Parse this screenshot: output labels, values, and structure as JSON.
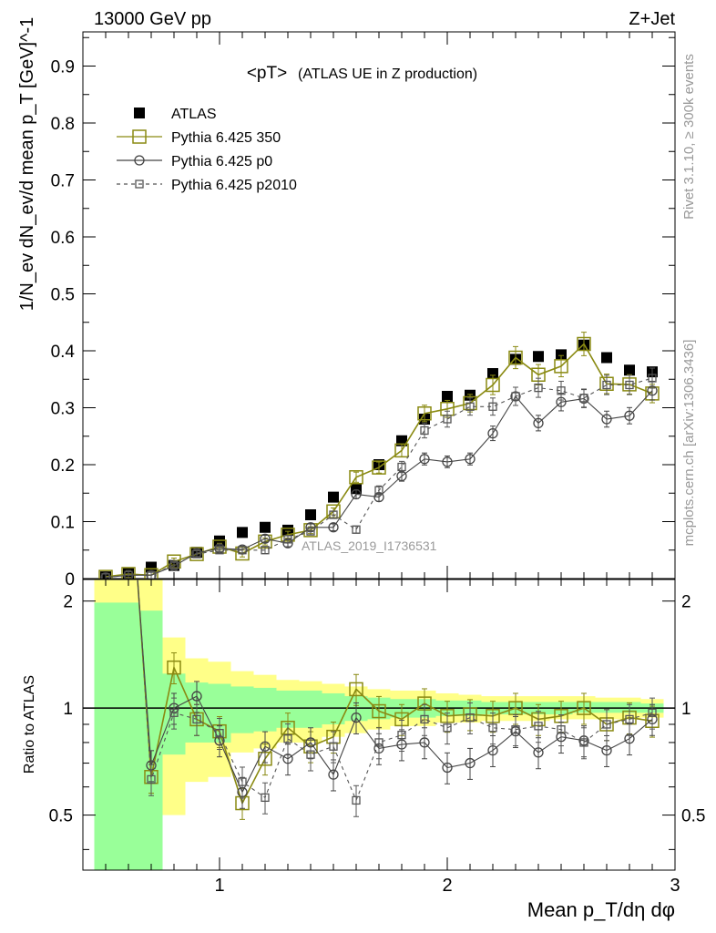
{
  "header": {
    "left": "13000 GeV pp",
    "right": "Z+Jet"
  },
  "upper_panel": {
    "title": "<pT>",
    "title_suffix": "(ATLAS UE in Z production)",
    "ylabel": "1/N_ev dN_ev/d mean p_T [GeV]^-1",
    "watermark": "ATLAS_2019_I1736531",
    "side_label_top": "Rivet 3.1.10, ≥ 300k events",
    "side_label_bottom": "mcplots.cern.ch [arXiv:1306.3436]"
  },
  "lower_panel": {
    "ylabel": "Ratio to ATLAS"
  },
  "xlabel": "Mean p_T/dη dφ",
  "legend": [
    {
      "name": "ATLAS",
      "style": "data"
    },
    {
      "name": "Pythia 6.425 350",
      "style": "olive"
    },
    {
      "name": "Pythia 6.425 p0",
      "style": "dark"
    },
    {
      "name": "Pythia 6.425 p2010",
      "style": "dashed"
    }
  ],
  "colors": {
    "data": "#000000",
    "olive": "#8a8a12",
    "dark": "#444444",
    "dashed": "#555555",
    "band_green": "#99ff99",
    "band_yellow": "#ffff88"
  },
  "chart_data": [
    {
      "type": "line",
      "panel": "upper",
      "xlim": [
        0.4,
        3.0
      ],
      "ylim": [
        0,
        0.96
      ],
      "x_ticks": [
        1,
        2,
        3
      ],
      "y_ticks": [
        0,
        0.1,
        0.2,
        0.3,
        0.4,
        0.5,
        0.6,
        0.7,
        0.8,
        0.9
      ],
      "y_tick_labels": [
        "0",
        "0.1",
        "0.2",
        "0.3",
        "0.4",
        "0.5",
        "0.6",
        "0.7",
        "0.8",
        "0.9"
      ],
      "x": [
        0.5,
        0.6,
        0.7,
        0.8,
        0.9,
        1.0,
        1.1,
        1.2,
        1.3,
        1.4,
        1.5,
        1.6,
        1.7,
        1.8,
        1.9,
        2.0,
        2.1,
        2.2,
        2.3,
        2.4,
        2.5,
        2.6,
        2.7,
        2.8,
        2.9
      ],
      "series": [
        {
          "name": "ATLAS",
          "values": [
            0.003,
            0.009,
            0.02,
            0.023,
            0.046,
            0.066,
            0.081,
            0.09,
            0.085,
            0.112,
            0.143,
            0.158,
            0.2,
            0.242,
            0.28,
            0.32,
            0.322,
            0.36,
            0.385,
            0.39,
            0.393,
            0.41,
            0.388,
            0.366,
            0.363
          ]
        },
        {
          "name": "Pythia 6.425 350",
          "values": [
            0.003,
            0.008,
            0.006,
            0.03,
            0.043,
            0.056,
            0.044,
            0.065,
            0.077,
            0.085,
            0.118,
            0.178,
            0.195,
            0.225,
            0.29,
            0.298,
            0.308,
            0.34,
            0.388,
            0.358,
            0.373,
            0.412,
            0.342,
            0.341,
            0.325
          ]
        },
        {
          "name": "Pythia 6.425 p0",
          "values": [
            0.002,
            0.006,
            0.006,
            0.022,
            0.045,
            0.053,
            0.051,
            0.07,
            0.062,
            0.09,
            0.09,
            0.148,
            0.143,
            0.18,
            0.21,
            0.205,
            0.21,
            0.255,
            0.32,
            0.273,
            0.31,
            0.316,
            0.28,
            0.286,
            0.33
          ]
        },
        {
          "name": "Pythia 6.425 p2010",
          "values": [
            0.002,
            0.006,
            0.006,
            0.024,
            0.043,
            0.05,
            0.05,
            0.05,
            0.069,
            0.083,
            0.112,
            0.086,
            0.155,
            0.196,
            0.26,
            0.28,
            0.302,
            0.302,
            0.32,
            0.335,
            0.33,
            0.317,
            0.34,
            0.34,
            0.352
          ]
        }
      ]
    },
    {
      "type": "line",
      "panel": "lower",
      "xlim": [
        0.4,
        3.0
      ],
      "ylim": [
        0.35,
        2.3
      ],
      "log_y": true,
      "x_ticks": [
        1,
        2,
        3
      ],
      "y_ticks": [
        0.5,
        1,
        2
      ],
      "y_tick_labels": [
        "0.5",
        "1",
        "2"
      ],
      "x": [
        0.7,
        0.8,
        0.9,
        1.0,
        1.1,
        1.2,
        1.3,
        1.4,
        1.5,
        1.6,
        1.7,
        1.8,
        1.9,
        2.0,
        2.1,
        2.2,
        2.3,
        2.4,
        2.5,
        2.6,
        2.7,
        2.8,
        2.9
      ],
      "band_edges": [
        0.45,
        0.65,
        0.75,
        0.85,
        0.95,
        1.05,
        1.15,
        1.25,
        1.35,
        1.45,
        1.55,
        1.65,
        1.75,
        1.85,
        1.95,
        2.05,
        2.15,
        2.25,
        2.35,
        2.45,
        2.55,
        2.65,
        2.75,
        2.85,
        2.95
      ],
      "band_green": [
        [
          0.1,
          1.98
        ],
        [
          0.1,
          1.88
        ],
        [
          0.74,
          1.25
        ],
        [
          0.8,
          1.18
        ],
        [
          0.8,
          1.17
        ],
        [
          0.85,
          1.15
        ],
        [
          0.86,
          1.14
        ],
        [
          0.88,
          1.12
        ],
        [
          0.88,
          1.12
        ],
        [
          0.9,
          1.1
        ],
        [
          0.92,
          1.08
        ],
        [
          0.93,
          1.07
        ],
        [
          0.94,
          1.06
        ],
        [
          0.94,
          1.06
        ],
        [
          0.95,
          1.05
        ],
        [
          0.95,
          1.05
        ],
        [
          0.96,
          1.04
        ],
        [
          0.96,
          1.04
        ],
        [
          0.96,
          1.04
        ],
        [
          0.96,
          1.04
        ],
        [
          0.97,
          1.04
        ],
        [
          0.97,
          1.04
        ],
        [
          0.97,
          1.04
        ],
        [
          0.97,
          1.03
        ]
      ],
      "band_yellow": [
        [
          0.1,
          2.4
        ],
        [
          0.1,
          2.3
        ],
        [
          0.5,
          1.58
        ],
        [
          0.62,
          1.38
        ],
        [
          0.64,
          1.35
        ],
        [
          0.75,
          1.27
        ],
        [
          0.77,
          1.24
        ],
        [
          0.8,
          1.2
        ],
        [
          0.8,
          1.19
        ],
        [
          0.83,
          1.17
        ],
        [
          0.85,
          1.15
        ],
        [
          0.87,
          1.13
        ],
        [
          0.89,
          1.12
        ],
        [
          0.89,
          1.12
        ],
        [
          0.91,
          1.1
        ],
        [
          0.91,
          1.09
        ],
        [
          0.92,
          1.08
        ],
        [
          0.92,
          1.08
        ],
        [
          0.92,
          1.08
        ],
        [
          0.93,
          1.08
        ],
        [
          0.93,
          1.08
        ],
        [
          0.93,
          1.07
        ],
        [
          0.93,
          1.07
        ],
        [
          0.94,
          1.06
        ]
      ],
      "series": [
        {
          "name": "Pythia 6.425 350",
          "values": [
            0.64,
            1.3,
            0.93,
            0.86,
            0.54,
            0.72,
            0.88,
            0.78,
            0.83,
            1.13,
            0.98,
            0.93,
            1.03,
            0.95,
            0.96,
            0.95,
            1.0,
            0.93,
            0.95,
            1.0,
            0.9,
            0.94,
            0.92
          ]
        },
        {
          "name": "Pythia 6.425 p0",
          "values": [
            0.69,
            1.0,
            1.08,
            0.81,
            0.58,
            0.78,
            0.72,
            0.8,
            0.65,
            0.94,
            0.77,
            0.79,
            0.8,
            0.68,
            0.7,
            0.76,
            0.86,
            0.75,
            0.83,
            0.81,
            0.76,
            0.82,
            0.93
          ]
        },
        {
          "name": "Pythia 6.425 p2010",
          "values": [
            0.63,
            0.97,
            0.93,
            0.85,
            0.62,
            0.56,
            0.82,
            0.74,
            0.78,
            0.55,
            0.8,
            0.84,
            0.93,
            0.88,
            0.94,
            0.88,
            0.87,
            0.89,
            0.87,
            0.8,
            0.9,
            0.93,
            0.97
          ]
        }
      ]
    }
  ]
}
